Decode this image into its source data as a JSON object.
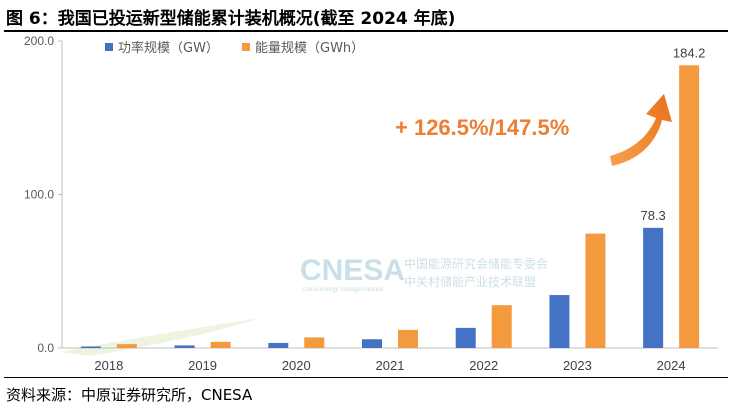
{
  "figure": {
    "title": "图 6：我国已投运新型储能累计装机概况(截至 2024 年底)",
    "source": "资料来源：中原证券研究所，CNESA"
  },
  "watermark": {
    "logo": "CNESA",
    "tagline": "China Energy Storage Alliance",
    "cn_line1": "中国能源研究会储能专委会",
    "cn_line2": "中关村储能产业技术联盟"
  },
  "annotation": {
    "text": "+ 126.5%/147.5%"
  },
  "colors": {
    "power": "#4472C4",
    "energy": "#F39A3E",
    "arrow": "#ED7D31"
  },
  "chart_data": {
    "type": "bar",
    "categories": [
      "2018",
      "2019",
      "2020",
      "2021",
      "2022",
      "2023",
      "2024"
    ],
    "series": [
      {
        "name": "功率规模（GW）",
        "values": [
          1.0,
          1.7,
          3.3,
          5.7,
          13.1,
          34.5,
          78.3
        ]
      },
      {
        "name": "能量规模（GWh）",
        "values": [
          2.5,
          4.0,
          6.9,
          11.8,
          27.9,
          74.5,
          184.2
        ]
      }
    ],
    "data_labels": [
      {
        "series": 0,
        "index": 6,
        "text": "78.3"
      },
      {
        "series": 1,
        "index": 6,
        "text": "184.2"
      }
    ],
    "ylim": [
      0,
      200
    ],
    "yticks": [
      "0.0",
      "100.0",
      "200.0"
    ],
    "grid": false,
    "legend_position": "top-left"
  }
}
